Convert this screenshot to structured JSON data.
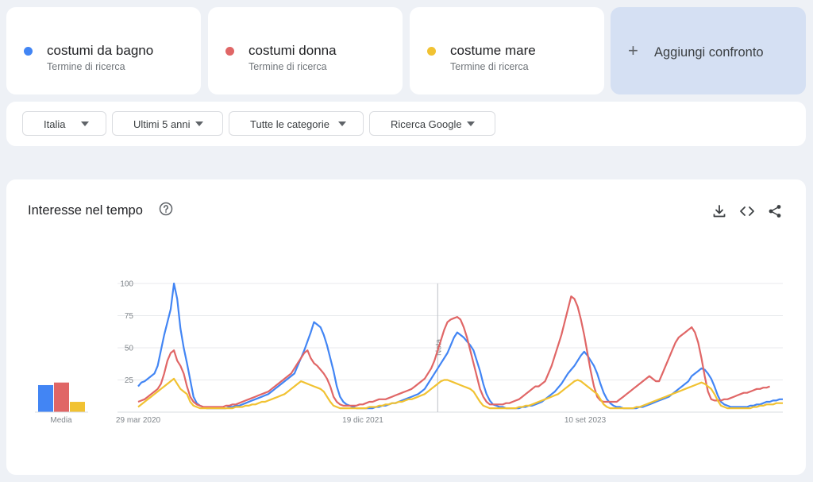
{
  "terms": [
    {
      "name": "costumi da bagno",
      "subtitle": "Termine di ricerca",
      "color": "#4285f4"
    },
    {
      "name": "costumi donna",
      "subtitle": "Termine di ricerca",
      "color": "#e06666"
    },
    {
      "name": "costume mare",
      "subtitle": "Termine di ricerca",
      "color": "#f1c232"
    }
  ],
  "add_compare": {
    "icon": "plus-icon",
    "label": "Aggiungi confronto"
  },
  "filters": [
    {
      "label": "Italia"
    },
    {
      "label": "Ultimi 5 anni"
    },
    {
      "label": "Tutte le categorie"
    },
    {
      "label": "Ricerca Google"
    }
  ],
  "panel": {
    "title": "Interesse nel tempo",
    "icons": [
      "help-icon",
      "download-icon",
      "embed-icon",
      "share-icon"
    ]
  },
  "chart_data": {
    "type": "line",
    "xlabel": "",
    "ylabel": "",
    "ylim": [
      0,
      100
    ],
    "y_ticks": [
      25,
      50,
      75,
      100
    ],
    "x_tick_labels": [
      "29 mar 2020",
      "19 dic 2021",
      "10 set 2023"
    ],
    "annotation": {
      "label": "Nota",
      "x_index": 92
    },
    "average_label": "Media",
    "averages": [
      21,
      23,
      8
    ],
    "series": [
      {
        "name": "costumi da bagno",
        "color": "#4285f4",
        "values": [
          20,
          23,
          24,
          26,
          28,
          30,
          36,
          48,
          60,
          70,
          80,
          100,
          88,
          65,
          50,
          38,
          25,
          12,
          7,
          5,
          4,
          3,
          3,
          3,
          3,
          3,
          3,
          3,
          4,
          4,
          5,
          5,
          6,
          7,
          8,
          9,
          10,
          11,
          12,
          13,
          14,
          16,
          18,
          20,
          22,
          24,
          26,
          28,
          30,
          36,
          42,
          48,
          55,
          62,
          70,
          68,
          66,
          60,
          52,
          42,
          32,
          20,
          12,
          8,
          6,
          5,
          4,
          3,
          3,
          3,
          3,
          3,
          3,
          4,
          4,
          5,
          5,
          6,
          7,
          7,
          8,
          9,
          10,
          11,
          12,
          13,
          14,
          16,
          18,
          22,
          26,
          30,
          34,
          38,
          42,
          46,
          52,
          58,
          62,
          60,
          58,
          55,
          52,
          48,
          40,
          32,
          22,
          14,
          9,
          6,
          5,
          4,
          4,
          3,
          3,
          3,
          3,
          3,
          4,
          4,
          5,
          5,
          6,
          7,
          8,
          10,
          12,
          14,
          16,
          19,
          22,
          26,
          30,
          33,
          36,
          40,
          44,
          47,
          44,
          40,
          36,
          30,
          22,
          15,
          10,
          7,
          5,
          4,
          4,
          3,
          3,
          3,
          3,
          3,
          4,
          4,
          5,
          6,
          7,
          8,
          9,
          10,
          11,
          12,
          14,
          16,
          18,
          20,
          22,
          24,
          28,
          30,
          32,
          34,
          33,
          30,
          26,
          20,
          13,
          8,
          6,
          5,
          4,
          4,
          4,
          4,
          4,
          4,
          5,
          5,
          6,
          6,
          7,
          8,
          8,
          9,
          9,
          10,
          10
        ]
      },
      {
        "name": "costumi donna",
        "color": "#e06666",
        "values": [
          8,
          9,
          10,
          12,
          14,
          16,
          18,
          22,
          30,
          40,
          46,
          48,
          40,
          36,
          30,
          20,
          12,
          8,
          6,
          5,
          4,
          4,
          4,
          4,
          4,
          4,
          4,
          5,
          5,
          6,
          6,
          7,
          8,
          9,
          10,
          11,
          12,
          13,
          14,
          15,
          16,
          18,
          20,
          22,
          24,
          26,
          28,
          30,
          34,
          38,
          42,
          46,
          48,
          42,
          38,
          36,
          33,
          30,
          26,
          20,
          12,
          8,
          6,
          5,
          5,
          5,
          5,
          5,
          6,
          6,
          7,
          8,
          8,
          9,
          10,
          10,
          10,
          11,
          12,
          13,
          14,
          15,
          16,
          17,
          18,
          20,
          22,
          24,
          26,
          30,
          34,
          40,
          48,
          56,
          64,
          70,
          72,
          73,
          74,
          72,
          66,
          58,
          48,
          38,
          28,
          18,
          12,
          8,
          6,
          6,
          6,
          6,
          6,
          7,
          7,
          8,
          9,
          10,
          12,
          14,
          16,
          18,
          20,
          20,
          22,
          24,
          30,
          36,
          44,
          52,
          60,
          70,
          80,
          90,
          88,
          82,
          72,
          60,
          46,
          32,
          20,
          12,
          9,
          8,
          8,
          8,
          8,
          8,
          10,
          12,
          14,
          16,
          18,
          20,
          22,
          24,
          26,
          28,
          26,
          24,
          24,
          30,
          36,
          42,
          48,
          54,
          58,
          60,
          62,
          64,
          66,
          62,
          54,
          42,
          28,
          16,
          10,
          9,
          9,
          9,
          10,
          10,
          11,
          12,
          13,
          14,
          15,
          15,
          16,
          17,
          18,
          18,
          19,
          19,
          20
        ]
      },
      {
        "name": "costume mare",
        "color": "#f1c232",
        "values": [
          4,
          6,
          8,
          10,
          12,
          14,
          16,
          18,
          20,
          22,
          24,
          26,
          22,
          18,
          16,
          14,
          8,
          5,
          4,
          3,
          3,
          3,
          3,
          3,
          3,
          3,
          3,
          3,
          3,
          3,
          4,
          4,
          4,
          5,
          5,
          6,
          6,
          7,
          8,
          8,
          9,
          10,
          11,
          12,
          13,
          14,
          16,
          18,
          20,
          22,
          24,
          23,
          22,
          21,
          20,
          19,
          18,
          16,
          12,
          8,
          5,
          4,
          3,
          3,
          3,
          3,
          3,
          3,
          3,
          3,
          3,
          4,
          4,
          4,
          5,
          5,
          6,
          6,
          7,
          7,
          8,
          8,
          9,
          10,
          10,
          11,
          12,
          13,
          14,
          16,
          18,
          20,
          22,
          24,
          25,
          25,
          24,
          23,
          22,
          21,
          20,
          19,
          18,
          16,
          12,
          8,
          5,
          4,
          3,
          3,
          3,
          3,
          3,
          3,
          3,
          3,
          3,
          4,
          4,
          5,
          5,
          6,
          7,
          8,
          9,
          10,
          11,
          12,
          13,
          14,
          16,
          18,
          20,
          22,
          24,
          25,
          24,
          22,
          20,
          18,
          16,
          14,
          10,
          6,
          4,
          3,
          3,
          3,
          3,
          3,
          3,
          3,
          3,
          4,
          4,
          5,
          6,
          7,
          8,
          9,
          10,
          11,
          12,
          13,
          14,
          15,
          16,
          17,
          18,
          19,
          20,
          21,
          22,
          23,
          22,
          20,
          18,
          14,
          9,
          5,
          4,
          3,
          3,
          3,
          3,
          3,
          3,
          3,
          3,
          4,
          4,
          5,
          5,
          6,
          6,
          6,
          7,
          7,
          7
        ]
      }
    ]
  }
}
